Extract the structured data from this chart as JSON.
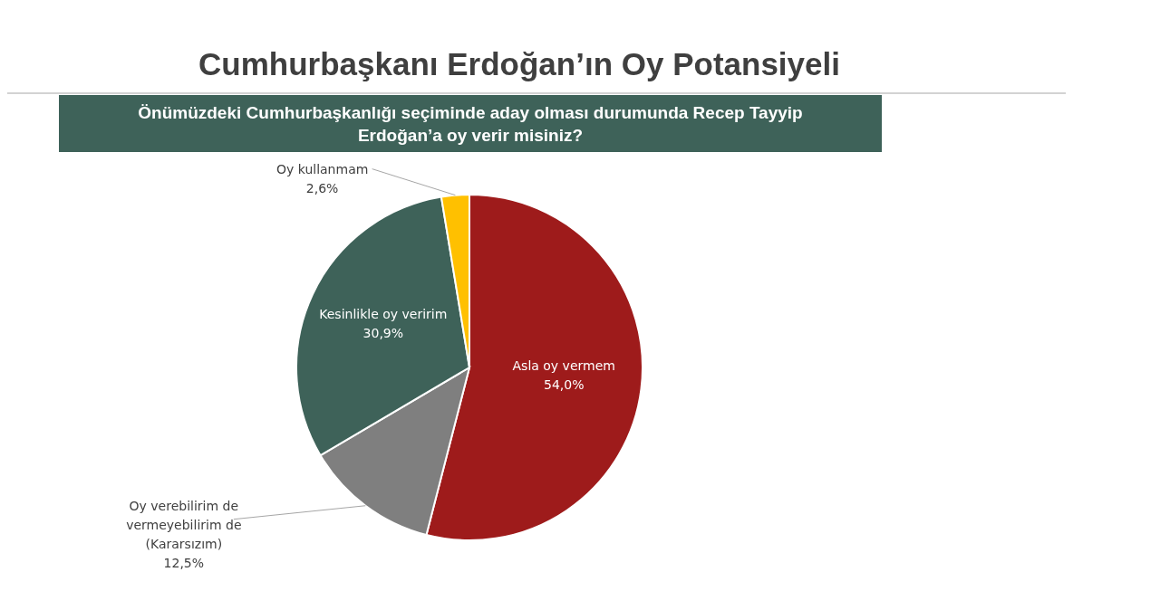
{
  "chart_data": {
    "type": "pie",
    "title": "Cumhurbaşkanı Erdoğan’ın Oy Potansiyeli",
    "subtitle": "Önümüzdeki Cumhurbaşkanlığı seçiminde aday olması durumunda Recep Tayyip Erdoğan’a oy verir misiniz?",
    "categories": [
      "Asla oy vermem",
      "Oy verebilirim de vermeyebilirim de (Kararsızım)",
      "Kesinlikle oy veririm",
      "Oy kullanmam"
    ],
    "values": [
      54.0,
      12.5,
      30.9,
      2.6
    ],
    "colors": [
      "#9e1b1b",
      "#7f7f7f",
      "#3e6259",
      "#ffc000"
    ],
    "value_labels": [
      "54,0%",
      "12,5%",
      "30,9%",
      "2,6%"
    ]
  }
}
